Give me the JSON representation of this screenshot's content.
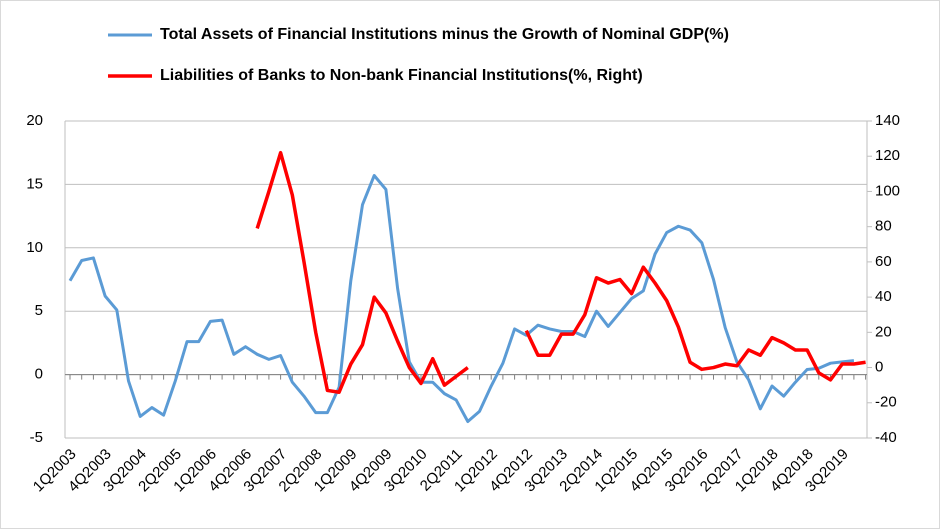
{
  "chart_data": {
    "type": "line",
    "categories": [
      "1Q2003",
      null,
      null,
      "4Q2003",
      null,
      null,
      "3Q2004",
      null,
      null,
      "2Q2005",
      null,
      null,
      "1Q2006",
      null,
      null,
      "4Q2006",
      null,
      null,
      "3Q2007",
      null,
      null,
      "2Q2008",
      null,
      null,
      "1Q2009",
      null,
      null,
      "4Q2009",
      null,
      null,
      "3Q2010",
      null,
      null,
      "2Q2011",
      null,
      null,
      "1Q2012",
      null,
      null,
      "4Q2012",
      null,
      null,
      "3Q2013",
      null,
      null,
      "2Q2014",
      null,
      null,
      "1Q2015",
      null,
      null,
      "4Q2015",
      null,
      null,
      "3Q2016",
      null,
      null,
      "2Q2017",
      null,
      null,
      "1Q2018",
      null,
      null,
      "4Q2018",
      null,
      null,
      "3Q2019",
      null,
      null
    ],
    "series": [
      {
        "name": "Total Assets of Financial Institutions minus the Growth of Nominal GDP(%)",
        "color": "#5b9bd5",
        "axis": "y",
        "values": [
          7.4,
          9.0,
          9.2,
          6.2,
          5.1,
          -0.5,
          -3.3,
          -2.6,
          -3.2,
          -0.5,
          2.6,
          2.6,
          4.2,
          4.3,
          1.6,
          2.2,
          1.6,
          1.2,
          1.5,
          -0.6,
          -1.7,
          -3.0,
          -3.0,
          -1.0,
          7.4,
          13.4,
          15.7,
          14.6,
          6.8,
          1.0,
          -0.6,
          -0.6,
          -1.5,
          -2.0,
          -3.7,
          -2.9,
          -0.9,
          0.9,
          3.6,
          3.1,
          3.9,
          3.6,
          3.4,
          3.4,
          3.0,
          5.0,
          3.8,
          4.9,
          6.0,
          6.6,
          9.5,
          11.2,
          11.7,
          11.4,
          10.4,
          7.5,
          3.7,
          1.0,
          -0.4,
          -2.7,
          -0.9,
          -1.7,
          -0.6,
          0.4,
          0.5,
          0.9,
          1.0,
          1.1,
          null
        ]
      },
      {
        "name": "Liabilities of Banks to Non-bank Financial Institutions(%, Right)",
        "color": "#ff0000",
        "axis": "y2",
        "values": [
          null,
          null,
          null,
          null,
          null,
          null,
          null,
          null,
          null,
          null,
          null,
          null,
          null,
          null,
          null,
          null,
          79,
          100,
          122,
          98,
          60,
          20,
          -13,
          -14,
          2,
          13,
          40,
          31,
          15,
          0,
          -9,
          5,
          -10,
          -5,
          0,
          null,
          null,
          null,
          null,
          21,
          7,
          7,
          19,
          19,
          30,
          51,
          48,
          50,
          42,
          57,
          48,
          38,
          23,
          3,
          -1,
          0,
          2,
          1,
          10,
          7,
          17,
          14,
          10,
          10,
          -3,
          -7,
          2,
          2,
          3
        ]
      }
    ],
    "ylim": [
      -5,
      20
    ],
    "yticks": [
      -5,
      0,
      5,
      10,
      15,
      20
    ],
    "y2lim": [
      -40,
      140
    ],
    "y2ticks": [
      -40,
      -20,
      0,
      20,
      40,
      60,
      80,
      100,
      120,
      140
    ],
    "grid": true
  }
}
